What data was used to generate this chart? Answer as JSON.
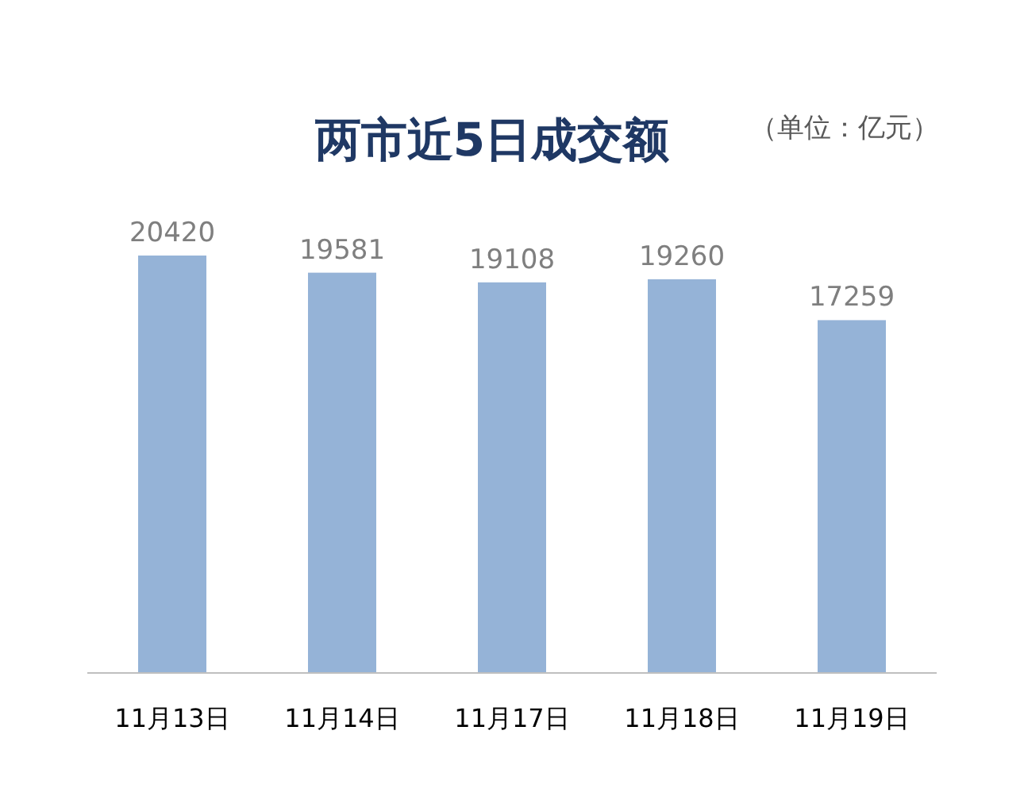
{
  "chart_data": {
    "type": "bar",
    "title": "两市近5日成交额",
    "annotations": [
      "（单位：亿元）"
    ],
    "categories": [
      "11月13日",
      "11月14日",
      "11月17日",
      "11月18日",
      "11月19日"
    ],
    "values": [
      20420,
      19581,
      19108,
      19260,
      17259
    ],
    "color": "#95b3d7",
    "data_labels": true
  }
}
